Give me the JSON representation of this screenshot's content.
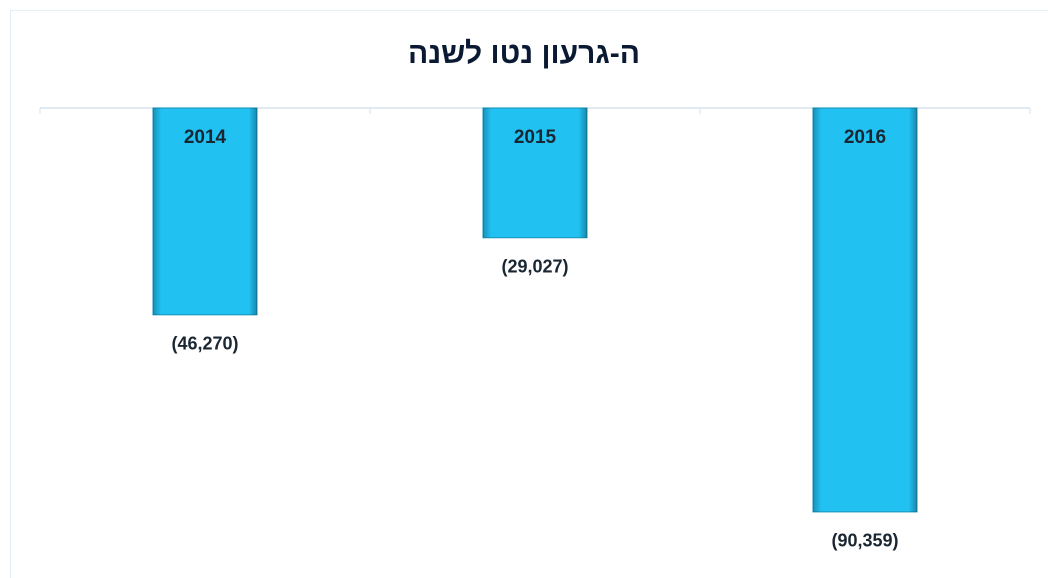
{
  "chart_data": {
    "type": "bar",
    "title": "ה-גרעון נטו לשנה",
    "categories": [
      "2014",
      "2015",
      "2016"
    ],
    "values": [
      -46270,
      -29027,
      -90359
    ],
    "value_labels": [
      "(46,270)",
      "(29,027)",
      "(90,359)"
    ],
    "color": "#21c1f2",
    "ylim": [
      -100000,
      0
    ]
  }
}
